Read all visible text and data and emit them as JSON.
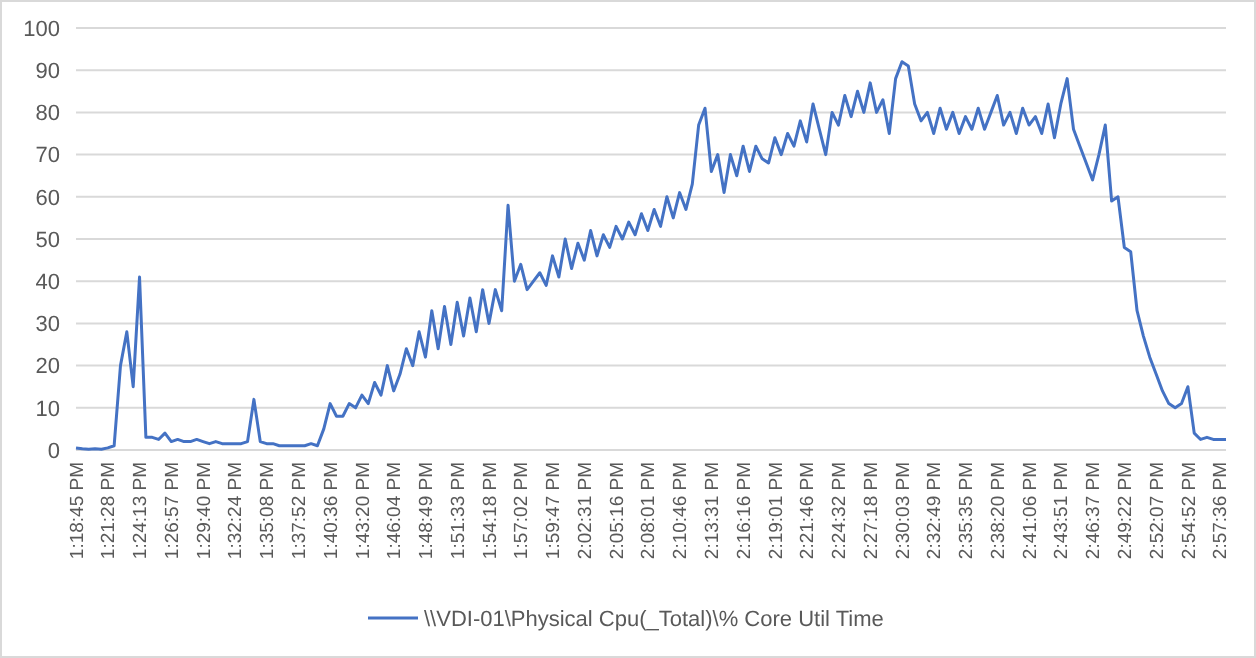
{
  "chart_data": {
    "type": "line",
    "categories": [
      "1:18:45 PM",
      null,
      null,
      null,
      null,
      "1:21:28 PM",
      null,
      null,
      null,
      null,
      "1:24:13 PM",
      null,
      null,
      null,
      null,
      "1:26:57 PM",
      null,
      null,
      null,
      null,
      "1:29:40 PM",
      null,
      null,
      null,
      null,
      "1:32:24 PM",
      null,
      null,
      null,
      null,
      "1:35:08 PM",
      null,
      null,
      null,
      null,
      "1:37:52 PM",
      null,
      null,
      null,
      null,
      "1:40:36 PM",
      null,
      null,
      null,
      null,
      "1:43:20 PM",
      null,
      null,
      null,
      null,
      "1:46:04 PM",
      null,
      null,
      null,
      null,
      "1:48:49 PM",
      null,
      null,
      null,
      null,
      "1:51:33 PM",
      null,
      null,
      null,
      null,
      "1:54:18 PM",
      null,
      null,
      null,
      null,
      "1:57:02 PM",
      null,
      null,
      null,
      null,
      "1:59:47 PM",
      null,
      null,
      null,
      null,
      "2:02:31 PM",
      null,
      null,
      null,
      null,
      "2:05:16 PM",
      null,
      null,
      null,
      null,
      "2:08:01 PM",
      null,
      null,
      null,
      null,
      "2:10:46 PM",
      null,
      null,
      null,
      null,
      "2:13:31 PM",
      null,
      null,
      null,
      null,
      "2:16:16 PM",
      null,
      null,
      null,
      null,
      "2:19:01 PM",
      null,
      null,
      null,
      null,
      "2:21:46 PM",
      null,
      null,
      null,
      null,
      "2:24:32 PM",
      null,
      null,
      null,
      null,
      "2:27:18 PM",
      null,
      null,
      null,
      null,
      "2:30:03 PM",
      null,
      null,
      null,
      null,
      "2:32:49 PM",
      null,
      null,
      null,
      null,
      "2:35:35 PM",
      null,
      null,
      null,
      null,
      "2:38:20 PM",
      null,
      null,
      null,
      null,
      "2:41:06 PM",
      null,
      null,
      null,
      null,
      "2:43:51 PM",
      null,
      null,
      null,
      null,
      "2:46:37 PM",
      null,
      null,
      null,
      null,
      "2:49:22 PM",
      null,
      null,
      null,
      null,
      "2:52:07 PM",
      null,
      null,
      null,
      null,
      "2:54:52 PM",
      null,
      null,
      null,
      null,
      "2:57:36 PM",
      null
    ],
    "series": [
      {
        "name": "\\\\VDI-01\\Physical Cpu(_Total)\\% Core Util Time",
        "color": "#4472c4",
        "values": [
          0.5,
          0.3,
          0.2,
          0.3,
          0.2,
          0.5,
          1,
          20,
          28,
          15,
          41,
          3,
          3,
          2.5,
          4,
          2,
          2.5,
          2,
          2,
          2.5,
          2,
          1.5,
          2,
          1.5,
          1.5,
          1.5,
          1.5,
          2,
          12,
          2,
          1.5,
          1.5,
          1,
          1,
          1,
          1,
          1,
          1.5,
          1,
          5,
          11,
          8,
          8,
          11,
          10,
          13,
          11,
          16,
          13,
          20,
          14,
          18,
          24,
          20,
          28,
          22,
          33,
          24,
          34,
          25,
          35,
          27,
          36,
          28,
          38,
          30,
          38,
          33,
          58,
          40,
          44,
          38,
          40,
          42,
          39,
          46,
          41,
          50,
          43,
          49,
          45,
          52,
          46,
          51,
          48,
          53,
          50,
          54,
          51,
          56,
          52,
          57,
          53,
          60,
          55,
          61,
          57,
          63,
          77,
          81,
          66,
          70,
          61,
          70,
          65,
          72,
          66,
          72,
          69,
          68,
          74,
          70,
          75,
          72,
          78,
          73,
          82,
          76,
          70,
          80,
          77,
          84,
          79,
          85,
          80,
          87,
          80,
          83,
          75,
          88,
          92,
          91,
          82,
          78,
          80,
          75,
          81,
          76,
          80,
          75,
          79,
          76,
          81,
          76,
          80,
          84,
          77,
          80,
          75,
          81,
          77,
          79,
          75,
          82,
          74,
          82,
          88,
          76,
          72,
          68,
          64,
          70,
          77,
          59,
          60,
          48,
          47,
          33,
          27,
          22,
          18,
          14,
          11,
          10,
          11,
          15,
          4,
          2.5,
          3,
          2.5,
          2.5,
          2.5
        ]
      }
    ],
    "ylim": [
      0,
      100
    ],
    "yticks": [
      0,
      10,
      20,
      30,
      40,
      50,
      60,
      70,
      80,
      90,
      100
    ],
    "grid": "y",
    "legend": "bottom",
    "line_style": "solid",
    "marker": "none"
  }
}
